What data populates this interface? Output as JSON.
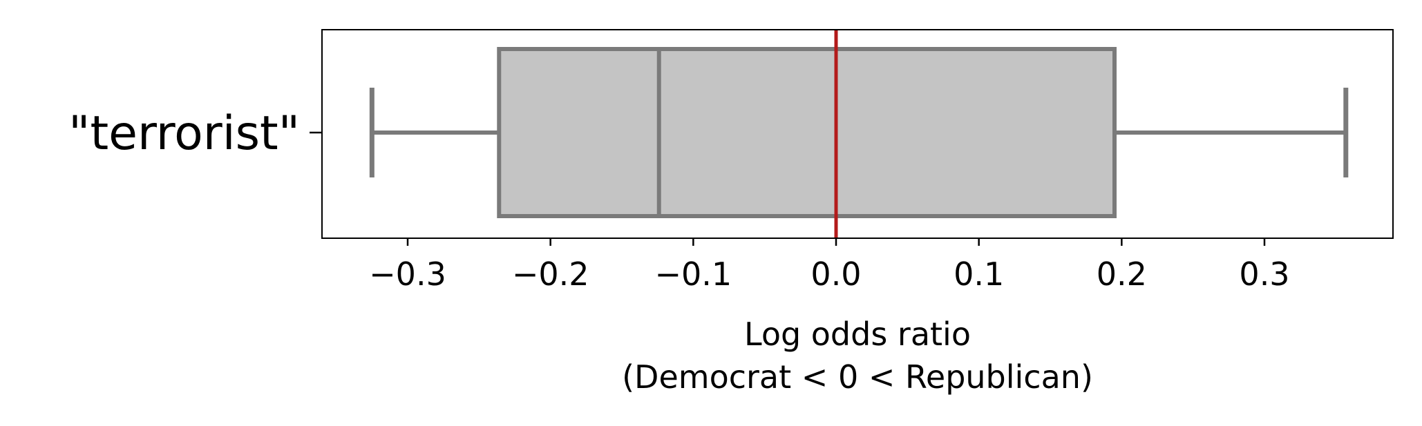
{
  "chart_data": {
    "type": "box",
    "categories": [
      "\"terrorist\""
    ],
    "boxes": [
      {
        "category": "\"terrorist\"",
        "whisker_low": -0.325,
        "q1": -0.236,
        "median": -0.124,
        "q3": 0.195,
        "whisker_high": 0.357
      }
    ],
    "reference_line": {
      "x": 0.0,
      "color": "#b31b1b"
    },
    "xlim": [
      -0.36,
      0.39
    ],
    "xticks": [
      -0.3,
      -0.2,
      -0.1,
      0.0,
      0.1,
      0.2,
      0.3
    ],
    "xtick_labels": [
      "−0.3",
      "−0.2",
      "−0.1",
      "0.0",
      "0.1",
      "0.2",
      "0.3"
    ],
    "xlabel_lines": [
      "Log odds ratio",
      "(Democrat < 0 < Republican)"
    ],
    "title": "",
    "colors": {
      "box_fill": "#c4c4c4",
      "box_edge": "#7a7a7a",
      "axes": "#000000"
    },
    "grid": false
  }
}
